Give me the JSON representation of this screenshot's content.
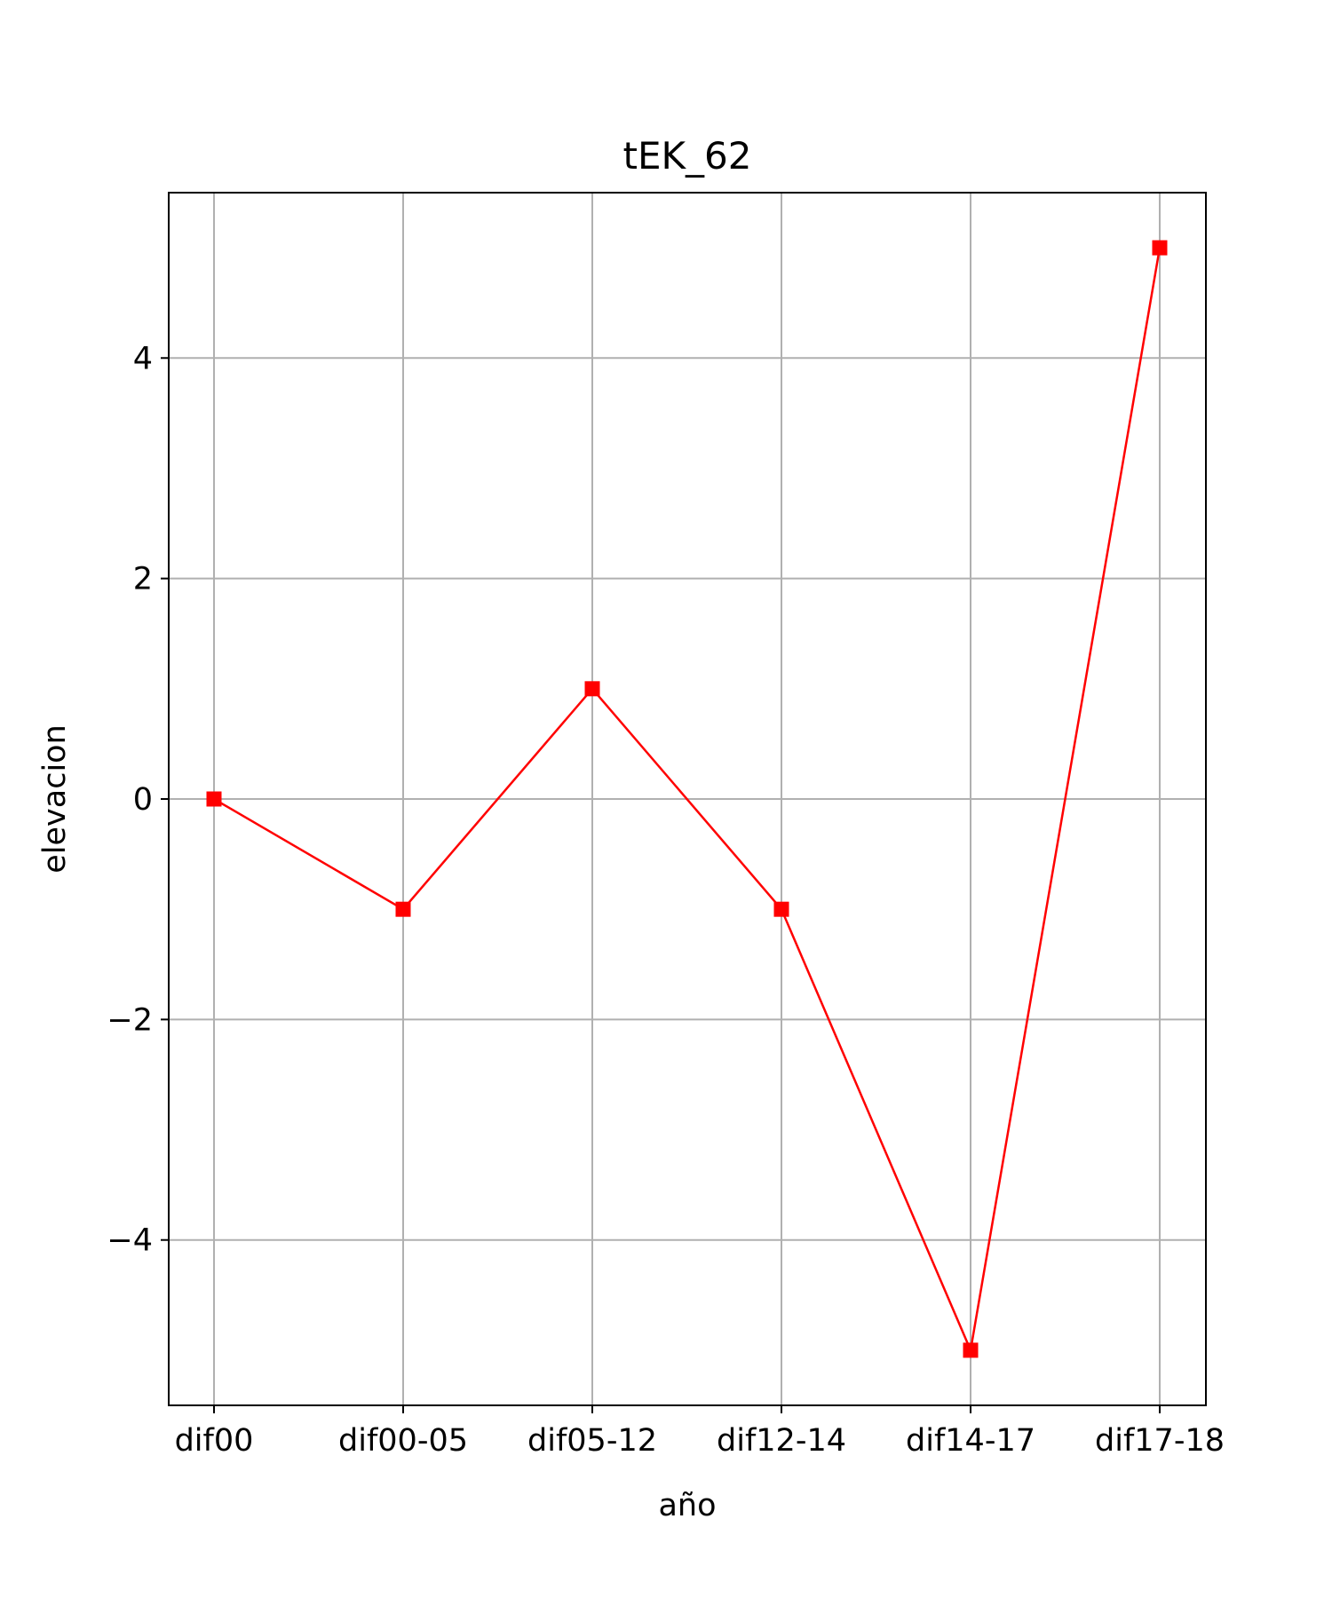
{
  "chart_data": {
    "type": "line",
    "title": "tEK_62",
    "xlabel": "año",
    "ylabel": "elevacion",
    "categories": [
      "dif00",
      "dif00-05",
      "dif05-12",
      "dif12-14",
      "dif14-17",
      "dif17-18"
    ],
    "series": [
      {
        "values": [
          0,
          -1,
          1,
          -1,
          -5,
          5
        ],
        "color": "#ff0000",
        "marker": "square"
      }
    ],
    "ylim": [
      -5.5,
      5.5
    ],
    "yticks": [
      -4,
      -2,
      0,
      2,
      4
    ],
    "ytick_labels": [
      "−4",
      "−2",
      "0",
      "2",
      "4"
    ],
    "grid": true
  }
}
